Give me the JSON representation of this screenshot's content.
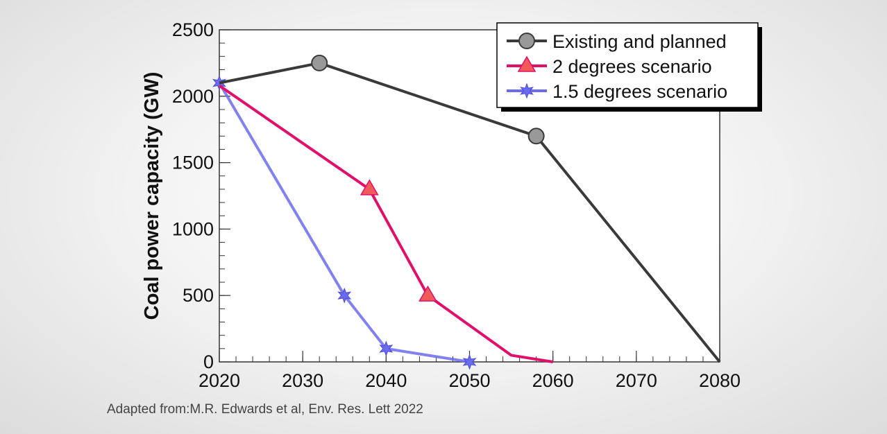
{
  "chart_data": {
    "type": "line",
    "title": "",
    "xlabel": "",
    "ylabel": "Coal power capacity (GW)",
    "xlim": [
      2020,
      2080
    ],
    "ylim": [
      0,
      2500
    ],
    "xticks": [
      2020,
      2030,
      2040,
      2050,
      2060,
      2070,
      2080
    ],
    "yticks": [
      0,
      500,
      1000,
      1500,
      2000,
      2500
    ],
    "grid": false,
    "legend_position": "top-right",
    "series": [
      {
        "name": "Existing and planned",
        "color": "#3a3a3a",
        "marker": "circle",
        "marker_color": "#999999",
        "x": [
          2020,
          2032,
          2058,
          2080
        ],
        "y": [
          2100,
          2250,
          1700,
          0
        ],
        "marked": [
          false,
          true,
          true,
          false
        ]
      },
      {
        "name": "2 degrees scenario",
        "color": "#e0106a",
        "marker": "triangle",
        "marker_color": "#f05a5a",
        "x": [
          2020,
          2038,
          2045,
          2055,
          2060
        ],
        "y": [
          2080,
          1300,
          500,
          50,
          0
        ],
        "marked": [
          false,
          true,
          true,
          false,
          false
        ]
      },
      {
        "name": "1.5 degrees scenario",
        "color": "#6b6bf0",
        "marker": "star",
        "marker_color": "#6b6bf0",
        "x": [
          2020,
          2035,
          2040,
          2050
        ],
        "y": [
          2100,
          500,
          100,
          0
        ],
        "marked": [
          true,
          true,
          true,
          true
        ]
      }
    ]
  },
  "source_note": "Adapted from:M.R. Edwards et al, Env. Res. Lett 2022"
}
